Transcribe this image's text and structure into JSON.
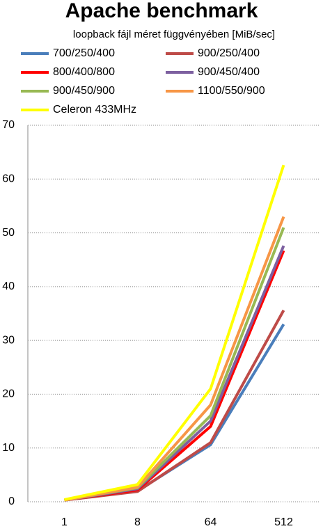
{
  "chart_data": {
    "type": "line",
    "title": "Apache benchmark",
    "subtitle": "loopback fájl méret függvényében [MiB/sec]",
    "categories": [
      "1",
      "8",
      "64",
      "512"
    ],
    "series": [
      {
        "name": "700/250/400",
        "color": "#4a7ebb",
        "values": [
          0.3,
          2.0,
          10.6,
          33
        ]
      },
      {
        "name": "900/250/400",
        "color": "#be4b48",
        "values": [
          0.3,
          1.9,
          11,
          35.6
        ]
      },
      {
        "name": "800/400/800",
        "color": "#ff0000",
        "values": [
          0.3,
          2.2,
          14,
          46.7
        ]
      },
      {
        "name": "900/450/400",
        "color": "#7d60a0",
        "values": [
          0.3,
          2.4,
          15,
          47.6
        ]
      },
      {
        "name": "900/450/900",
        "color": "#98b954",
        "values": [
          0.3,
          2.6,
          16,
          51
        ]
      },
      {
        "name": "1100/550/900",
        "color": "#f79646",
        "values": [
          0.3,
          2.7,
          18,
          53
        ]
      },
      {
        "name": "Celeron 433MHz",
        "color": "#ffff00",
        "values": [
          0.4,
          3.2,
          21,
          62.6
        ]
      }
    ],
    "ylim": [
      0,
      70
    ],
    "yticks": [
      0,
      10,
      20,
      30,
      40,
      50,
      60,
      70
    ],
    "grid": true
  }
}
